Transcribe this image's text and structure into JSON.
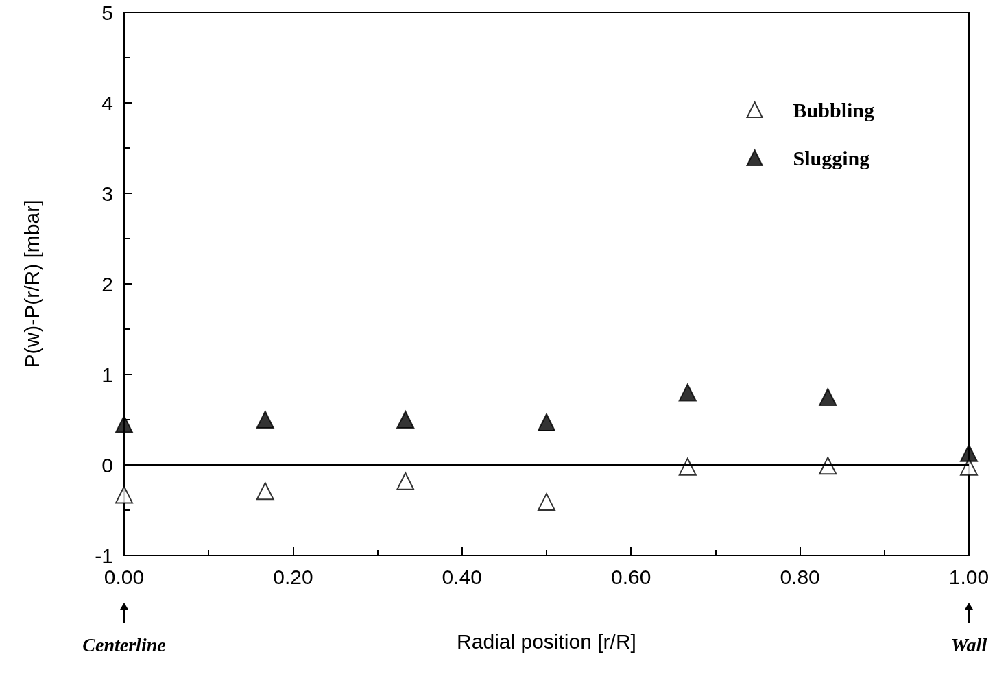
{
  "chart_data": {
    "type": "scatter",
    "xlabel": "Radial position [r/R]",
    "ylabel": "P(w)-P(r/R) [mbar]",
    "series": [
      {
        "name": "Bubbling",
        "color": "#000000",
        "marker": "triangle-open",
        "x": [
          0,
          0.167,
          0.333,
          0.5,
          0.667,
          0.833,
          1.0
        ],
        "values": [
          -0.33,
          -0.29,
          -0.18,
          -0.41,
          -0.02,
          -0.01,
          -0.02
        ]
      },
      {
        "name": "Slugging",
        "color": "#000000",
        "x": [
          0,
          0.167,
          0.333,
          0.5,
          0.667,
          0.833,
          1.0
        ],
        "values": [
          0.45,
          0.5,
          0.5,
          0.47,
          0.8,
          0.75,
          0.13
        ]
      }
    ],
    "xlim": [
      0,
      1
    ],
    "ylim": [
      -1,
      5
    ],
    "xticks": [
      {
        "value": 0,
        "label": "0.00"
      },
      {
        "value": 0.2,
        "label": "0.20"
      },
      {
        "value": 0.4,
        "label": "0.40"
      },
      {
        "value": 0.6,
        "label": "0.60"
      },
      {
        "value": 0.8,
        "label": "0.80"
      },
      {
        "value": 1,
        "label": "1.00"
      }
    ],
    "yticks": [
      -1,
      0,
      1,
      2,
      3,
      4,
      5
    ],
    "ref_lines": [
      {
        "axis": "y",
        "value": 0,
        "color": "#000000",
        "line_style": "solid"
      }
    ],
    "annotations": [
      "Centerline",
      "Wall"
    ],
    "marker": "triangle",
    "grid": false,
    "legend": "top right"
  }
}
